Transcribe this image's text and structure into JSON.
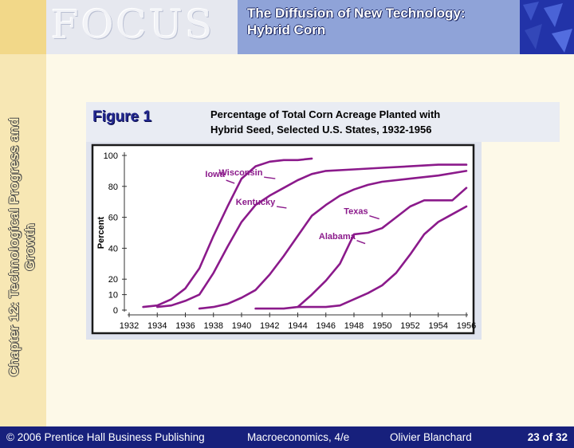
{
  "header": {
    "focus_word": "FOCUS",
    "title_line1": "The Diffusion of New Technology:",
    "title_line2": "Hybrid Corn"
  },
  "side_label": {
    "line1": "Chapter 12: Technological Progress and",
    "line2": "Growth"
  },
  "figure": {
    "label": "Figure 1",
    "caption_line1": "Percentage of Total Corn Acreage Planted with",
    "caption_line2": "Hybrid Seed, Selected U.S. States, 1932-1956"
  },
  "footer": {
    "copyright": "© 2006 Prentice Hall Business Publishing",
    "book": "Macroeconomics, 4/e",
    "author": "Olivier Blanchard",
    "page": "23 of 32"
  },
  "colors": {
    "line": "#8b1a8b",
    "footer_bg": "#17207c",
    "title_bg": "#8fa3d8",
    "figure_label": "#22278f"
  },
  "chart_data": {
    "type": "line",
    "title": "",
    "xlabel": "",
    "ylabel": "Percent",
    "xlim": [
      1932,
      1956
    ],
    "ylim": [
      0,
      100
    ],
    "x_ticks": [
      1932,
      1934,
      1936,
      1938,
      1940,
      1942,
      1944,
      1946,
      1948,
      1950,
      1952,
      1954,
      1956
    ],
    "y_ticks": [
      0,
      10,
      20,
      40,
      60,
      80,
      100
    ],
    "grid": false,
    "legend": "inline labels",
    "series": [
      {
        "name": "Iowa",
        "label_year": 1938.8,
        "label_value": 86,
        "points": [
          [
            1933,
            2
          ],
          [
            1934,
            3
          ],
          [
            1935,
            7
          ],
          [
            1936,
            14
          ],
          [
            1937,
            27
          ],
          [
            1938,
            48
          ],
          [
            1939,
            67
          ],
          [
            1940,
            85
          ],
          [
            1941,
            93
          ],
          [
            1942,
            96
          ],
          [
            1943,
            97
          ],
          [
            1944,
            97
          ],
          [
            1945,
            98
          ]
        ]
      },
      {
        "name": "Wisconsin",
        "label_year": 1941.5,
        "label_value": 87,
        "points": [
          [
            1934,
            2
          ],
          [
            1935,
            3
          ],
          [
            1936,
            6
          ],
          [
            1937,
            10
          ],
          [
            1938,
            24
          ],
          [
            1939,
            41
          ],
          [
            1940,
            57
          ],
          [
            1941,
            68
          ],
          [
            1942,
            74
          ],
          [
            1943,
            79
          ],
          [
            1944,
            84
          ],
          [
            1945,
            88
          ],
          [
            1946,
            90
          ],
          [
            1948,
            91
          ],
          [
            1950,
            92
          ],
          [
            1952,
            93
          ],
          [
            1954,
            94
          ],
          [
            1956,
            94
          ]
        ]
      },
      {
        "name": "Kentucky",
        "label_year": 1942.4,
        "label_value": 68,
        "points": [
          [
            1937,
            1
          ],
          [
            1938,
            2
          ],
          [
            1939,
            4
          ],
          [
            1940,
            8
          ],
          [
            1941,
            13
          ],
          [
            1942,
            23
          ],
          [
            1943,
            35
          ],
          [
            1944,
            48
          ],
          [
            1945,
            61
          ],
          [
            1946,
            68
          ],
          [
            1947,
            74
          ],
          [
            1948,
            78
          ],
          [
            1949,
            81
          ],
          [
            1950,
            83
          ],
          [
            1952,
            85
          ],
          [
            1954,
            87
          ],
          [
            1956,
            90
          ]
        ]
      },
      {
        "name": "Texas",
        "label_year": 1949,
        "label_value": 62,
        "points": [
          [
            1941,
            1
          ],
          [
            1942,
            1
          ],
          [
            1943,
            1
          ],
          [
            1944,
            2
          ],
          [
            1945,
            10
          ],
          [
            1946,
            19
          ],
          [
            1947,
            30
          ],
          [
            1948,
            49
          ],
          [
            1949,
            50
          ],
          [
            1950,
            53
          ],
          [
            1951,
            60
          ],
          [
            1952,
            67
          ],
          [
            1953,
            71
          ],
          [
            1954,
            71
          ],
          [
            1955,
            71
          ],
          [
            1956,
            79
          ]
        ]
      },
      {
        "name": "Alabama",
        "label_year": 1948.1,
        "label_value": 46,
        "points": [
          [
            1944,
            2
          ],
          [
            1945,
            2
          ],
          [
            1946,
            2
          ],
          [
            1947,
            3
          ],
          [
            1948,
            7
          ],
          [
            1949,
            11
          ],
          [
            1950,
            16
          ],
          [
            1951,
            24
          ],
          [
            1952,
            36
          ],
          [
            1953,
            49
          ],
          [
            1954,
            57
          ],
          [
            1955,
            62
          ],
          [
            1956,
            67
          ]
        ]
      }
    ]
  }
}
